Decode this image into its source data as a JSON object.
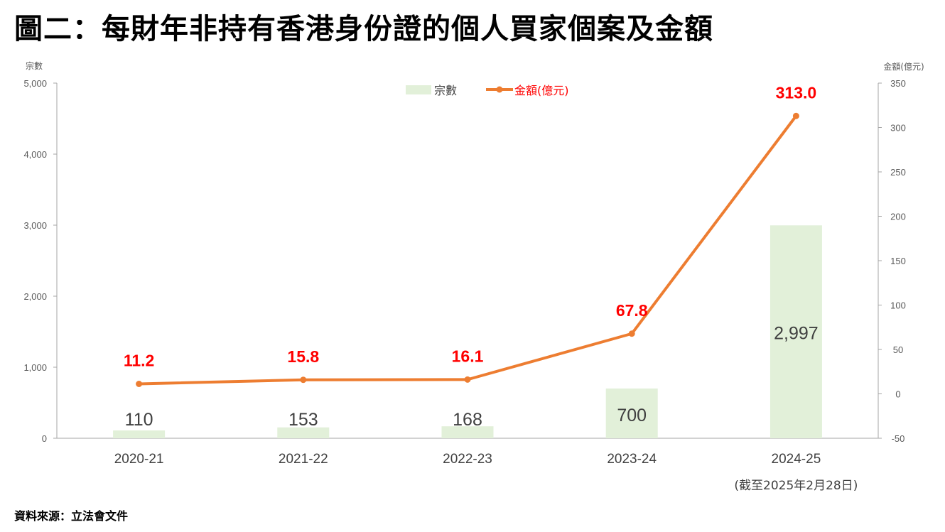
{
  "title": "圖二：每財年非持有香港身份證的個人買家個案及金額",
  "source": "資料來源：立法會文件",
  "chart_data": {
    "type": "bar",
    "categories": [
      "2020-21",
      "2021-22",
      "2022-23",
      "2023-24",
      "2024-25"
    ],
    "category_sublabels": [
      "",
      "",
      "",
      "",
      "(截至2025年2月28日)"
    ],
    "series": [
      {
        "name": "宗數",
        "type": "bar",
        "axis": "left",
        "color": "#e2f0d9",
        "values": [
          110,
          153,
          168,
          700,
          2997
        ],
        "labels": [
          "110",
          "153",
          "168",
          "700",
          "2,997"
        ]
      },
      {
        "name": "金額(億元)",
        "type": "line",
        "axis": "right",
        "color": "#ed7d31",
        "values": [
          11.2,
          15.8,
          16.1,
          67.8,
          313.0
        ],
        "labels": [
          "11.2",
          "15.8",
          "16.1",
          "67.8",
          "313.0"
        ]
      }
    ],
    "y_left": {
      "label": "宗數",
      "min": 0,
      "max": 5000,
      "ticks": [
        "0",
        "1,000",
        "2,000",
        "3,000",
        "4,000",
        "5,000"
      ]
    },
    "y_right": {
      "label": "金額(億元)",
      "min": -50,
      "max": 350,
      "ticks": [
        "-50",
        "0",
        "50",
        "100",
        "150",
        "200",
        "250",
        "300",
        "350"
      ]
    },
    "legend": "top-center",
    "label_color": "#ff0000",
    "grid": false
  }
}
